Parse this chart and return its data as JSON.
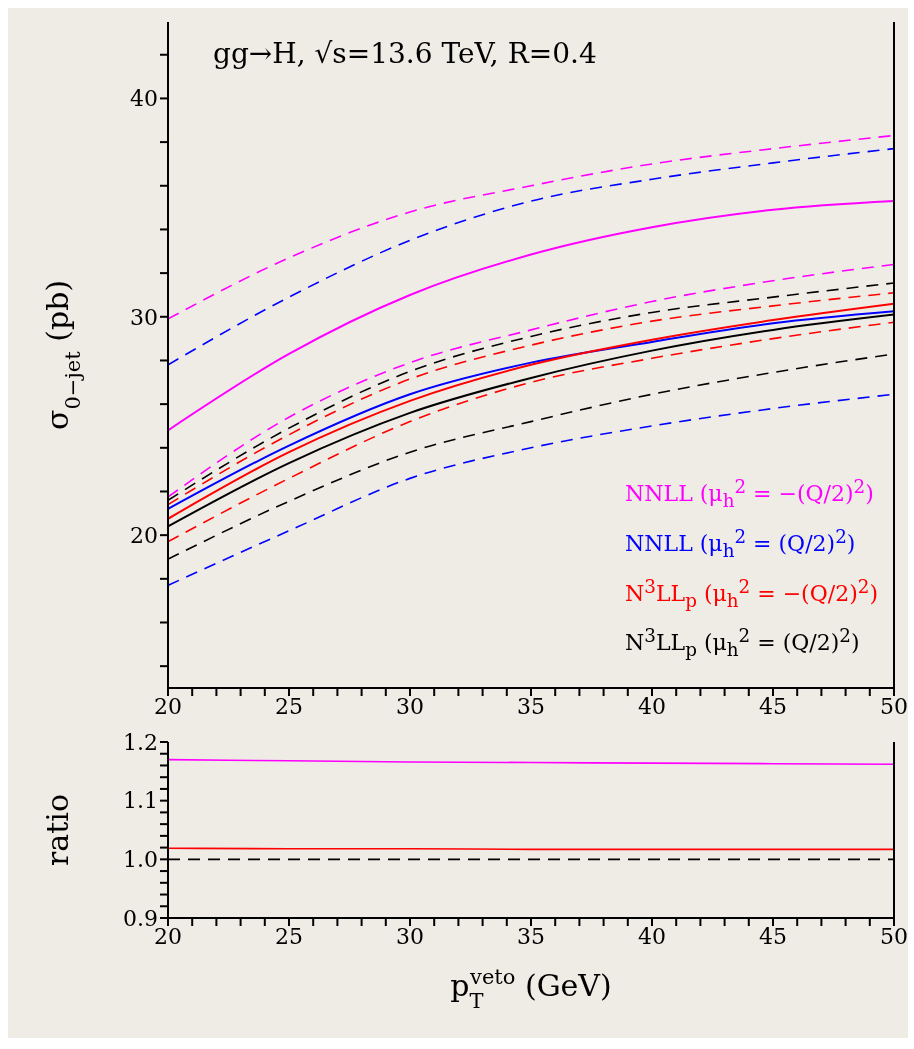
{
  "chart_data": [
    {
      "type": "line",
      "title": "gg→H, √s=13.6 TeV, R=0.4",
      "ylabel": "σ$_{0−jet}$ (pb)",
      "x": [
        20,
        25,
        30,
        35,
        40,
        45,
        50
      ],
      "xlim": [
        20,
        50
      ],
      "xticks": [
        20,
        {
          "value": 21,
          "label": null
        },
        {
          "value": 22,
          "label": null
        },
        {
          "value": 23,
          "label": null
        },
        {
          "value": 24,
          "label": null
        },
        25,
        {
          "value": 26,
          "label": null
        },
        {
          "value": 27,
          "label": null
        },
        {
          "value": 28,
          "label": null
        },
        {
          "value": 29,
          "label": null
        },
        30,
        {
          "value": 31,
          "label": null
        },
        {
          "value": 32,
          "label": null
        },
        {
          "value": 33,
          "label": null
        },
        {
          "value": 34,
          "label": null
        },
        35,
        {
          "value": 36,
          "label": null
        },
        {
          "value": 37,
          "label": null
        },
        {
          "value": 38,
          "label": null
        },
        {
          "value": 39,
          "label": null
        },
        40,
        {
          "value": 41,
          "label": null
        },
        {
          "value": 42,
          "label": null
        },
        {
          "value": 43,
          "label": null
        },
        {
          "value": 44,
          "label": null
        },
        45,
        {
          "value": 46,
          "label": null
        },
        {
          "value": 47,
          "label": null
        },
        {
          "value": 48,
          "label": null
        },
        {
          "value": 49,
          "label": null
        },
        50
      ],
      "ylim": [
        13,
        43.5
      ],
      "yticks": [
        {
          "value": 14,
          "label": null
        },
        {
          "value": 16,
          "label": null
        },
        {
          "value": 18,
          "label": null
        },
        20,
        {
          "value": 22,
          "label": null
        },
        {
          "value": 24,
          "label": null
        },
        {
          "value": 26,
          "label": null
        },
        {
          "value": 28,
          "label": null
        },
        30,
        {
          "value": 32,
          "label": null
        },
        {
          "value": 34,
          "label": null
        },
        {
          "value": 36,
          "label": null
        },
        {
          "value": 38,
          "label": null
        },
        40,
        {
          "value": 42,
          "label": null
        }
      ],
      "legend": "bottom right",
      "grid": false,
      "series": [
        {
          "color": "#ff00ff",
          "line_style": "dashed",
          "values": [
            29.9,
            32.7,
            34.8,
            36.0,
            37.0,
            37.7,
            38.3
          ]
        },
        {
          "color": "#0000ff",
          "line_style": "dashed",
          "values": [
            27.8,
            30.9,
            33.5,
            35.3,
            36.3,
            37.05,
            37.7
          ]
        },
        {
          "color": "#ff00ff",
          "line_style": "dashed",
          "values": [
            21.75,
            25.4,
            27.9,
            29.4,
            30.7,
            31.65,
            32.4
          ]
        },
        {
          "color": "#000000",
          "line_style": "dashed",
          "values": [
            21.6,
            24.9,
            27.5,
            29.1,
            30.2,
            30.9,
            31.55
          ]
        },
        {
          "color": "#ff0000",
          "line_style": "dashed",
          "values": [
            21.4,
            24.6,
            27.15,
            28.7,
            29.8,
            30.5,
            31.1
          ]
        },
        {
          "color": "#ff0000",
          "line_style": "dashed",
          "values": [
            19.7,
            22.6,
            25.2,
            27.0,
            28.1,
            29.0,
            29.75
          ]
        },
        {
          "color": "#000000",
          "line_style": "dashed",
          "values": [
            18.9,
            21.55,
            23.8,
            25.2,
            26.45,
            27.45,
            28.3
          ]
        },
        {
          "color": "#0000ff",
          "line_style": "dashed",
          "values": [
            17.7,
            20.2,
            22.6,
            24.0,
            25.0,
            25.8,
            26.45
          ]
        },
        {
          "name": "NNLL (μ$_{h}$$^{2}$ = −(Q/2)$^{2}$)",
          "color": "#ff00ff",
          "line_style": "solid",
          "values": [
            24.8,
            28.3,
            31.0,
            32.85,
            34.1,
            34.9,
            35.3
          ]
        },
        {
          "name": "NNLL (μ$_{h}$$^{2}$ = (Q/2)$^{2}$)",
          "color": "#0000ff",
          "line_style": "solid",
          "values": [
            21.2,
            24.1,
            26.45,
            27.9,
            28.85,
            29.7,
            30.25
          ]
        },
        {
          "name": "N$^{3}$LL$_{p}$ (μ$_{h}$$^{2}$ = −(Q/2)$^{2}$)",
          "color": "#ff0000",
          "line_style": "solid",
          "values": [
            20.75,
            23.8,
            26.15,
            27.8,
            28.95,
            29.85,
            30.6
          ]
        },
        {
          "name": "N$^{3}$LL$_{p}$ (μ$_{h}$$^{2}$ = (Q/2)$^{2}$)",
          "color": "#000000",
          "line_style": "solid",
          "values": [
            20.4,
            23.3,
            25.6,
            27.2,
            28.45,
            29.4,
            30.1
          ]
        }
      ]
    },
    {
      "type": "line",
      "ylabel": "ratio",
      "xlabel": "p$_{T}$$^{veto}$ (GeV)",
      "x": [
        20,
        25,
        30,
        35,
        40,
        45,
        50
      ],
      "xlim": [
        20,
        50
      ],
      "xticks": [
        20,
        {
          "value": 21,
          "label": null
        },
        {
          "value": 22,
          "label": null
        },
        {
          "value": 23,
          "label": null
        },
        {
          "value": 24,
          "label": null
        },
        25,
        {
          "value": 26,
          "label": null
        },
        {
          "value": 27,
          "label": null
        },
        {
          "value": 28,
          "label": null
        },
        {
          "value": 29,
          "label": null
        },
        30,
        {
          "value": 31,
          "label": null
        },
        {
          "value": 32,
          "label": null
        },
        {
          "value": 33,
          "label": null
        },
        {
          "value": 34,
          "label": null
        },
        35,
        {
          "value": 36,
          "label": null
        },
        {
          "value": 37,
          "label": null
        },
        {
          "value": 38,
          "label": null
        },
        {
          "value": 39,
          "label": null
        },
        40,
        {
          "value": 41,
          "label": null
        },
        {
          "value": 42,
          "label": null
        },
        {
          "value": 43,
          "label": null
        },
        {
          "value": 44,
          "label": null
        },
        45,
        {
          "value": 46,
          "label": null
        },
        {
          "value": 47,
          "label": null
        },
        {
          "value": 48,
          "label": null
        },
        {
          "value": 49,
          "label": null
        },
        50
      ],
      "ylim": [
        0.9,
        1.2
      ],
      "yticks": [
        0.9,
        {
          "value": 0.92,
          "label": null
        },
        {
          "value": 0.94,
          "label": null
        },
        {
          "value": 0.96,
          "label": null
        },
        {
          "value": 0.98,
          "label": null
        },
        {
          "value": 1,
          "label": "1.0"
        },
        {
          "value": 1.02,
          "label": null
        },
        {
          "value": 1.04,
          "label": null
        },
        {
          "value": 1.06,
          "label": null
        },
        {
          "value": 1.08,
          "label": null
        },
        1.1,
        {
          "value": 1.12,
          "label": null
        },
        {
          "value": 1.14,
          "label": null
        },
        {
          "value": 1.16,
          "label": null
        },
        {
          "value": 1.18,
          "label": null
        },
        1.2
      ],
      "grid": false,
      "legend": false,
      "ref_lines": [
        {
          "axis": "y",
          "value": 1,
          "color": "#000000",
          "line_style": "dashed"
        }
      ],
      "series": [
        {
          "color": "#ff00ff",
          "line_style": "solid",
          "values": [
            1.17,
            1.168,
            1.166,
            1.165,
            1.164,
            1.163,
            1.162
          ]
        },
        {
          "color": "#ff0000",
          "line_style": "solid",
          "values": [
            1.019,
            1.018,
            1.018,
            1.017,
            1.017,
            1.017,
            1.017
          ]
        }
      ]
    }
  ]
}
